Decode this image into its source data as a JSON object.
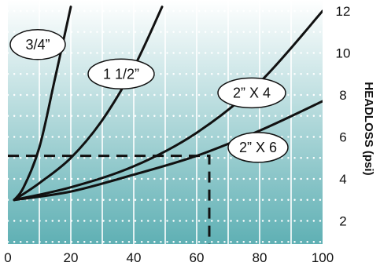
{
  "chart_data": {
    "type": "line",
    "title": "",
    "xlabel": "",
    "ylabel": "HEADLOSS (psi)",
    "xlim": [
      0,
      100
    ],
    "ylim": [
      0,
      12
    ],
    "x_ticks": [
      "0",
      "20",
      "40",
      "60",
      "80",
      "100"
    ],
    "y_ticks": [
      "2",
      "4",
      "6",
      "8",
      "10",
      "12"
    ],
    "grid": true,
    "background": "vertical gradient white to teal",
    "colors": {
      "grad_top": "#ffffff",
      "grad_bottom": "#5fb0b4",
      "line": "#111111",
      "grid": "#ffffff"
    },
    "series": [
      {
        "name": "3/4”",
        "x": [
          2,
          5,
          10,
          15,
          20
        ],
        "y": [
          3.0,
          3.6,
          5.5,
          8.8,
          12.2
        ]
      },
      {
        "name": "1 1/2”",
        "x": [
          2,
          10,
          20,
          30,
          40,
          49
        ],
        "y": [
          3.0,
          3.8,
          5.0,
          6.8,
          9.3,
          12.2
        ]
      },
      {
        "name": "2” X 4",
        "x": [
          2,
          20,
          40,
          60,
          80,
          100
        ],
        "y": [
          3.0,
          3.6,
          4.6,
          6.2,
          8.6,
          12.0
        ]
      },
      {
        "name": "2” X 6",
        "x": [
          2,
          20,
          40,
          60,
          80,
          100
        ],
        "y": [
          3.0,
          3.4,
          4.2,
          5.1,
          6.3,
          7.7
        ]
      }
    ],
    "reference_line": {
      "x": 64,
      "y": 5.1
    }
  }
}
